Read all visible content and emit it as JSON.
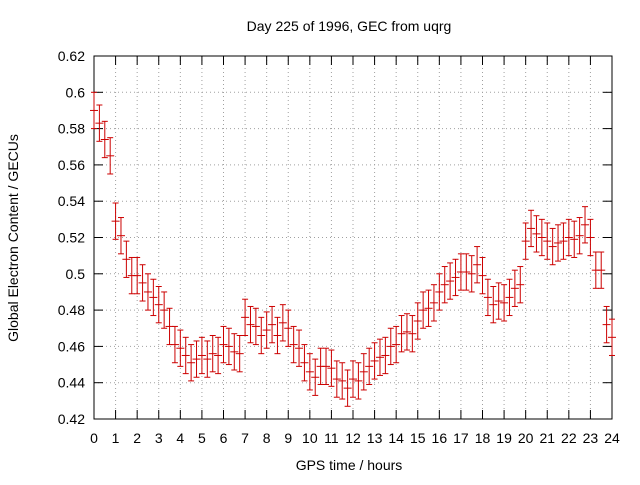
{
  "chart_data": {
    "type": "scatter",
    "title": "Day 225 of 1996, GEC from uqrg",
    "xlabel": "GPS time / hours",
    "ylabel": "Global Electron Content / GECUs",
    "xlim": [
      0,
      24
    ],
    "ylim": [
      0.42,
      0.62
    ],
    "x_ticks": [
      "0",
      "1",
      "2",
      "3",
      "4",
      "5",
      "6",
      "7",
      "8",
      "9",
      "10",
      "11",
      "12",
      "13",
      "14",
      "15",
      "16",
      "17",
      "18",
      "19",
      "20",
      "21",
      "22",
      "23",
      "24"
    ],
    "y_ticks": [
      "0.42",
      "0.44",
      "0.46",
      "0.48",
      "0.5",
      "0.52",
      "0.54",
      "0.56",
      "0.58",
      "0.6",
      "0.62"
    ],
    "grid": true,
    "series_color": "#cc0000",
    "error": 0.01,
    "series": [
      {
        "x": [
          0.0,
          0.25,
          0.5,
          0.75,
          1.0,
          1.25,
          1.5,
          1.75,
          2.0,
          2.25,
          2.5,
          2.75,
          3.0,
          3.25,
          3.5,
          3.75,
          4.0,
          4.25,
          4.5,
          4.75,
          5.0,
          5.25,
          5.5,
          5.75,
          6.0,
          6.25,
          6.5,
          6.75,
          7.0,
          7.25,
          7.5,
          7.75,
          8.0,
          8.25,
          8.5,
          8.75,
          9.0,
          9.25,
          9.5,
          9.75,
          10.0,
          10.25,
          10.5,
          10.75,
          11.0,
          11.25,
          11.5,
          11.75,
          12.0,
          12.25,
          12.5,
          12.75,
          13.0,
          13.25,
          13.5,
          13.75,
          14.0,
          14.25,
          14.5,
          14.75,
          15.0,
          15.25,
          15.5,
          15.75,
          16.0,
          16.25,
          16.5,
          16.75,
          17.0,
          17.25,
          17.5,
          17.75,
          18.0,
          18.25,
          18.5,
          18.75,
          19.0,
          19.25,
          19.5,
          19.75,
          20.0,
          20.25,
          20.5,
          20.75,
          21.0,
          21.25,
          21.5,
          21.75,
          22.0,
          22.25,
          22.5,
          22.75,
          23.0,
          23.25,
          23.5,
          23.75,
          24.0
        ],
        "y": [
          0.59,
          0.583,
          0.574,
          0.565,
          0.529,
          0.521,
          0.508,
          0.499,
          0.499,
          0.495,
          0.49,
          0.487,
          0.483,
          0.48,
          0.471,
          0.461,
          0.459,
          0.455,
          0.451,
          0.453,
          0.455,
          0.453,
          0.456,
          0.455,
          0.461,
          0.46,
          0.457,
          0.456,
          0.476,
          0.472,
          0.471,
          0.466,
          0.469,
          0.472,
          0.466,
          0.473,
          0.47,
          0.461,
          0.459,
          0.451,
          0.446,
          0.443,
          0.449,
          0.449,
          0.448,
          0.442,
          0.441,
          0.437,
          0.442,
          0.441,
          0.446,
          0.449,
          0.452,
          0.454,
          0.455,
          0.46,
          0.461,
          0.467,
          0.468,
          0.467,
          0.474,
          0.48,
          0.481,
          0.484,
          0.49,
          0.494,
          0.496,
          0.498,
          0.501,
          0.501,
          0.5,
          0.505,
          0.499,
          0.487,
          0.483,
          0.485,
          0.484,
          0.487,
          0.492,
          0.494,
          0.518,
          0.525,
          0.522,
          0.52,
          0.518,
          0.515,
          0.517,
          0.518,
          0.52,
          0.519,
          0.521,
          0.527,
          0.52,
          0.502,
          0.502,
          0.472,
          0.465
        ]
      }
    ]
  }
}
